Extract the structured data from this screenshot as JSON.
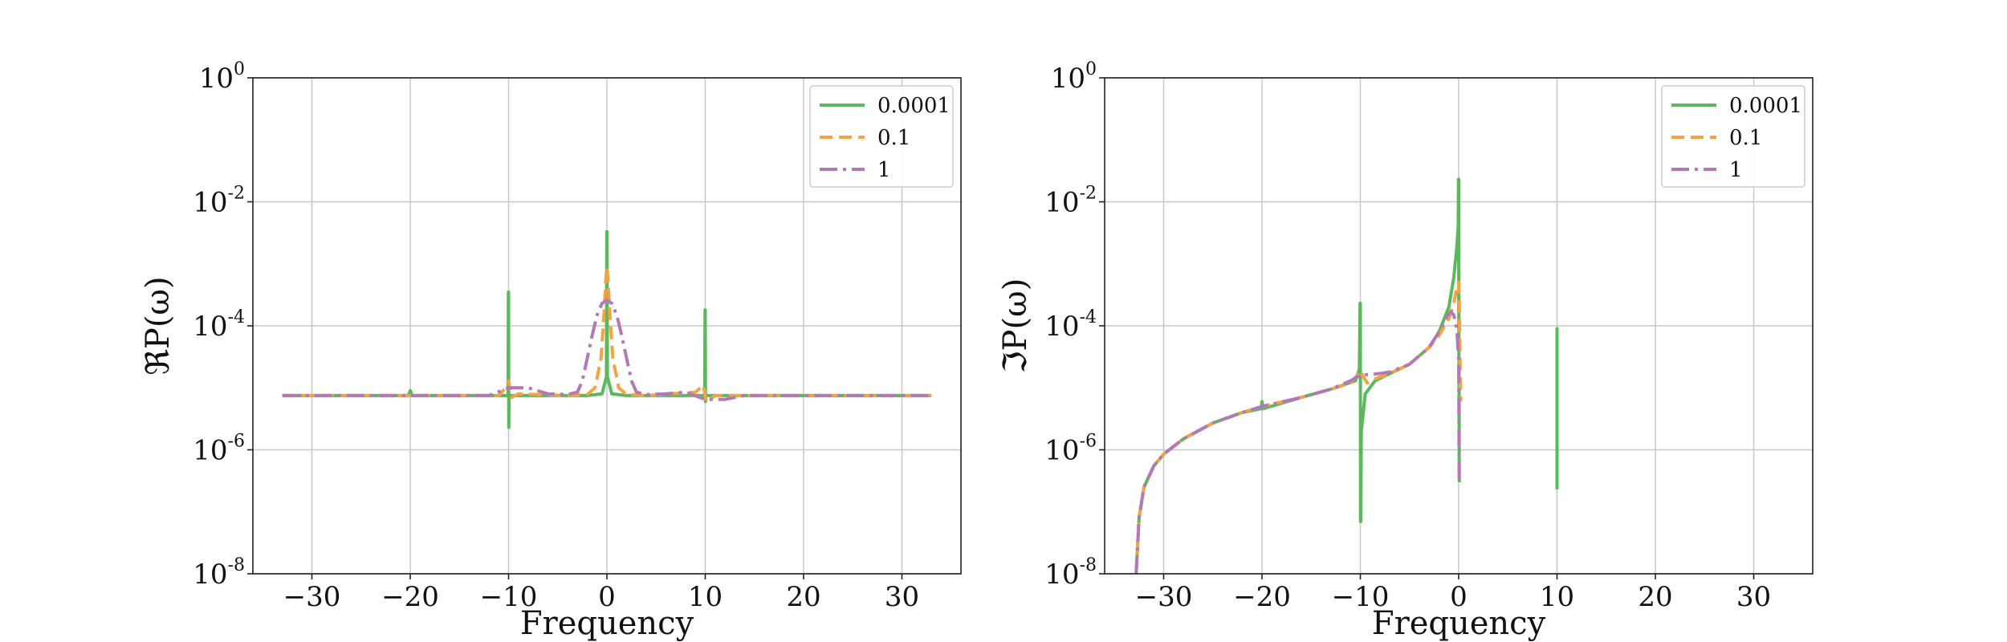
{
  "chart_data": [
    {
      "type": "line",
      "ylabel": "ℜP(ω)",
      "xlabel": "Frequency",
      "yscale": "log",
      "xlim": [
        -36,
        36
      ],
      "ylim_exp": [
        -8,
        0
      ],
      "xticks": [
        -30,
        -20,
        -10,
        0,
        10,
        20,
        30
      ],
      "xtick_labels": [
        "−30",
        "−20",
        "−10",
        "0",
        "10",
        "20",
        "30"
      ],
      "yticks": [
        {
          "base": "10",
          "exp": "-8",
          "value": 1e-08
        },
        {
          "base": "10",
          "exp": "-6",
          "value": 1e-06
        },
        {
          "base": "10",
          "exp": "-4",
          "value": 0.0001
        },
        {
          "base": "10",
          "exp": "-2",
          "value": 0.01
        },
        {
          "base": "10",
          "exp": "0",
          "value": 1
        }
      ],
      "grid": true,
      "legend_position": "top-right",
      "series": [
        {
          "name": "0.0001",
          "color": "#5cb85c",
          "dash": "solid",
          "points": [
            [
              -33,
              7.5e-06
            ],
            [
              -20.2,
              7.5e-06
            ],
            [
              -20,
              9e-06
            ],
            [
              -19.8,
              7.5e-06
            ],
            [
              -10.05,
              7.5e-06
            ],
            [
              -10.02,
              0.00035
            ],
            [
              -10,
              0.00035
            ],
            [
              -9.98,
              2.3e-06
            ],
            [
              -9.95,
              7.5e-06
            ],
            [
              -2,
              7.5e-06
            ],
            [
              -0.5,
              8e-06
            ],
            [
              -0.05,
              1.5e-05
            ],
            [
              -0.01,
              0.0033
            ],
            [
              0.01,
              0.0033
            ],
            [
              0.05,
              1.5e-05
            ],
            [
              0.5,
              8e-06
            ],
            [
              2,
              7.5e-06
            ],
            [
              9.95,
              7.5e-06
            ],
            [
              9.98,
              0.00018
            ],
            [
              10,
              0.00018
            ],
            [
              10.02,
              6e-06
            ],
            [
              10.05,
              7.5e-06
            ],
            [
              33,
              7.5e-06
            ]
          ]
        },
        {
          "name": "0.1",
          "color": "#f5a340",
          "dash": "dashed",
          "points": [
            [
              -33,
              7.5e-06
            ],
            [
              -11,
              7.5e-06
            ],
            [
              -10.3,
              1e-05
            ],
            [
              -10,
              1.3e-05
            ],
            [
              -9.7,
              7e-06
            ],
            [
              -9,
              8e-06
            ],
            [
              -4,
              7.5e-06
            ],
            [
              -2,
              7.8e-06
            ],
            [
              -1.2,
              1e-05
            ],
            [
              -0.6,
              3e-05
            ],
            [
              -0.3,
              0.00015
            ],
            [
              -0.1,
              0.0006
            ],
            [
              0,
              0.0009
            ],
            [
              0.1,
              0.0006
            ],
            [
              0.3,
              0.00015
            ],
            [
              0.6,
              3e-05
            ],
            [
              1.2,
              1e-05
            ],
            [
              2,
              7.8e-06
            ],
            [
              4,
              7.5e-06
            ],
            [
              9,
              8.5e-06
            ],
            [
              9.8,
              1.1e-05
            ],
            [
              10.1,
              6e-06
            ],
            [
              10.5,
              6.5e-06
            ],
            [
              11,
              7.5e-06
            ],
            [
              33,
              7.5e-06
            ]
          ]
        },
        {
          "name": "1",
          "color": "#b278b8",
          "dash": "dashdot",
          "points": [
            [
              -33,
              7.5e-06
            ],
            [
              -12,
              7.5e-06
            ],
            [
              -10,
              1e-05
            ],
            [
              -8,
              1e-05
            ],
            [
              -6,
              8e-06
            ],
            [
              -4,
              7.8e-06
            ],
            [
              -3,
              8.5e-06
            ],
            [
              -2.5,
              1.3e-05
            ],
            [
              -2,
              3e-05
            ],
            [
              -1.5,
              7e-05
            ],
            [
              -1,
              0.00015
            ],
            [
              -0.5,
              0.00023
            ],
            [
              0,
              0.00026
            ],
            [
              0.5,
              0.00023
            ],
            [
              1,
              0.00015
            ],
            [
              1.5,
              7e-05
            ],
            [
              2,
              3e-05
            ],
            [
              2.5,
              1.3e-05
            ],
            [
              3,
              8.5e-06
            ],
            [
              4,
              7.8e-06
            ],
            [
              6,
              8e-06
            ],
            [
              8,
              8.5e-06
            ],
            [
              10,
              6.5e-06
            ],
            [
              12,
              6.5e-06
            ],
            [
              14,
              7.5e-06
            ],
            [
              33,
              7.5e-06
            ]
          ]
        }
      ]
    },
    {
      "type": "line",
      "ylabel": "ℑP(ω)",
      "xlabel": "Frequency",
      "yscale": "log",
      "xlim": [
        -36,
        36
      ],
      "ylim_exp": [
        -8,
        0
      ],
      "xticks": [
        -30,
        -20,
        -10,
        0,
        10,
        20,
        30
      ],
      "xtick_labels": [
        "−30",
        "−20",
        "−10",
        "0",
        "10",
        "20",
        "30"
      ],
      "yticks": [
        {
          "base": "10",
          "exp": "-8",
          "value": 1e-08
        },
        {
          "base": "10",
          "exp": "-6",
          "value": 1e-06
        },
        {
          "base": "10",
          "exp": "-4",
          "value": 0.0001
        },
        {
          "base": "10",
          "exp": "-2",
          "value": 0.01
        },
        {
          "base": "10",
          "exp": "0",
          "value": 1
        }
      ],
      "grid": true,
      "legend_position": "top-right",
      "series": [
        {
          "name": "0.0001",
          "color": "#5cb85c",
          "dash": "solid",
          "points": [
            [
              -32.8,
              1e-08
            ],
            [
              -32.5,
              8e-08
            ],
            [
              -32,
              2.5e-07
            ],
            [
              -31,
              5.5e-07
            ],
            [
              -30,
              8.5e-07
            ],
            [
              -28,
              1.5e-06
            ],
            [
              -25,
              2.7e-06
            ],
            [
              -22,
              4e-06
            ],
            [
              -20.1,
              4.6e-06
            ],
            [
              -20,
              6e-06
            ],
            [
              -19.9,
              4.6e-06
            ],
            [
              -16,
              7e-06
            ],
            [
              -13,
              9.5e-06
            ],
            [
              -10.5,
              1.3e-05
            ],
            [
              -10.1,
              2e-05
            ],
            [
              -10.03,
              0.00023
            ],
            [
              -10,
              0.00023
            ],
            [
              -9.98,
              7e-08
            ],
            [
              -9.96,
              7e-08
            ],
            [
              -9.9,
              2e-06
            ],
            [
              -9.5,
              8e-06
            ],
            [
              -8.5,
              1.3e-05
            ],
            [
              -7,
              1.7e-05
            ],
            [
              -5,
              2.4e-05
            ],
            [
              -3,
              4.5e-05
            ],
            [
              -2,
              8e-05
            ],
            [
              -1,
              0.0002
            ],
            [
              -0.5,
              0.0006
            ],
            [
              -0.2,
              0.0018
            ],
            [
              -0.05,
              0.004
            ],
            [
              -0.02,
              0.023
            ],
            [
              0,
              0.023
            ],
            [
              0.01,
              0.0002
            ],
            [
              0.02,
              5e-05
            ],
            [
              0.04,
              1e-05
            ],
            [
              0.06,
              3e-07
            ]
          ]
        },
        {
          "name": "0.0001",
          "color": "#5cb85c",
          "dash": "solid",
          "points": [
            [
              10,
              9.5e-05
            ],
            [
              10,
              2.3e-07
            ]
          ]
        },
        {
          "name": "0.1",
          "color": "#f5a340",
          "dash": "dashed",
          "points": [
            [
              -32.8,
              1e-08
            ],
            [
              -32.5,
              8e-08
            ],
            [
              -32,
              2.5e-07
            ],
            [
              -31,
              5.5e-07
            ],
            [
              -30,
              8.5e-07
            ],
            [
              -28,
              1.5e-06
            ],
            [
              -25,
              2.7e-06
            ],
            [
              -22,
              4e-06
            ],
            [
              -20,
              5e-06
            ],
            [
              -16,
              7e-06
            ],
            [
              -13,
              9.5e-06
            ],
            [
              -11,
              1.2e-05
            ],
            [
              -10.3,
              1.6e-05
            ],
            [
              -10,
              1.9e-05
            ],
            [
              -9.7,
              1.5e-05
            ],
            [
              -9.3,
              1.2e-05
            ],
            [
              -8.5,
              1.4e-05
            ],
            [
              -7,
              1.7e-05
            ],
            [
              -5,
              2.4e-05
            ],
            [
              -3,
              4.5e-05
            ],
            [
              -2,
              7e-05
            ],
            [
              -1,
              0.00013
            ],
            [
              -0.5,
              0.00023
            ],
            [
              -0.2,
              0.0004
            ],
            [
              0,
              0.0005
            ],
            [
              0.05,
              0.0003
            ],
            [
              0.1,
              8e-05
            ],
            [
              0.15,
              2e-05
            ],
            [
              0.2,
              6e-06
            ]
          ]
        },
        {
          "name": "1",
          "color": "#b278b8",
          "dash": "dashdot",
          "points": [
            [
              -32.8,
              1e-08
            ],
            [
              -32.5,
              8e-08
            ],
            [
              -32,
              2.5e-07
            ],
            [
              -31,
              5.5e-07
            ],
            [
              -30,
              8.5e-07
            ],
            [
              -28,
              1.5e-06
            ],
            [
              -25,
              2.7e-06
            ],
            [
              -22,
              4e-06
            ],
            [
              -20,
              5e-06
            ],
            [
              -16,
              7e-06
            ],
            [
              -13,
              9.5e-06
            ],
            [
              -11,
              1.3e-05
            ],
            [
              -10,
              1.6e-05
            ],
            [
              -8,
              1.7e-05
            ],
            [
              -7,
              1.8e-05
            ],
            [
              -5,
              2.4e-05
            ],
            [
              -3,
              4.5e-05
            ],
            [
              -2,
              8e-05
            ],
            [
              -1.2,
              0.00014
            ],
            [
              -0.8,
              0.00017
            ],
            [
              -0.5,
              0.00015
            ],
            [
              -0.2,
              9e-05
            ],
            [
              0,
              3e-05
            ],
            [
              0.05,
              3e-07
            ]
          ]
        }
      ]
    }
  ]
}
